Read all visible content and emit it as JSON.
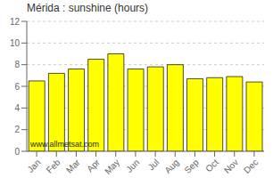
{
  "chart_data": {
    "type": "bar",
    "title": "Mérida : sunshine (hours)",
    "categories": [
      "Jan",
      "Feb",
      "Mar",
      "Apr",
      "May",
      "Jun",
      "Jul",
      "Aug",
      "Sep",
      "Oct",
      "Nov",
      "Dec"
    ],
    "values": [
      6.5,
      7.2,
      7.6,
      8.5,
      9.0,
      7.6,
      7.8,
      8.0,
      6.7,
      6.8,
      6.9,
      6.4
    ],
    "color": "#FFFF00",
    "ylim": [
      0,
      12
    ],
    "yticks": [
      0,
      2,
      4,
      6,
      8,
      10,
      12
    ],
    "grid": true,
    "annotations": [
      "www.allmetsat.com"
    ]
  }
}
